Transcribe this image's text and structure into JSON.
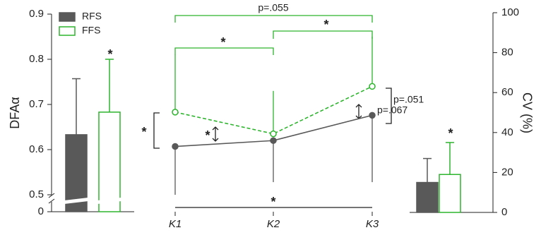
{
  "chart_data": {
    "type": "bar_line",
    "ylabel": "DFAα",
    "y2label": "CV (%)",
    "categories": [
      "K1",
      "K2",
      "K3"
    ],
    "ylim": [
      0.5,
      0.9
    ],
    "yticks": [
      0.5,
      0.6,
      0.7,
      0.8,
      0.9
    ],
    "ybreak_ticks": [
      0
    ],
    "y2lim": [
      0,
      100
    ],
    "y2ticks": [
      0,
      20,
      40,
      60,
      80,
      100
    ],
    "series": [
      {
        "name": "RFS",
        "color": "#595959",
        "filled": true,
        "line_style": "solid",
        "line_error_direction": "down",
        "dfa_mean": 0.633,
        "dfa_error": 0.124,
        "values": [
          0.607,
          0.62,
          0.676
        ],
        "errors": [
          0.107,
          0.092,
          0.148
        ],
        "cv_mean": 15,
        "cv_error": 12
      },
      {
        "name": "FFS",
        "color": "#2db52d",
        "filled": false,
        "line_style": "dashed",
        "line_error_direction": "up",
        "dfa_mean": 0.683,
        "dfa_error": 0.117,
        "values": [
          0.683,
          0.635,
          0.74
        ],
        "errors": [
          0.127,
          0.095,
          0.11
        ],
        "cv_mean": 19,
        "cv_error": 16
      }
    ],
    "annotations": [
      "p=.055",
      "*",
      "*",
      "*",
      "*",
      "*",
      "p=.067",
      "p=.051",
      "*",
      "*"
    ]
  }
}
